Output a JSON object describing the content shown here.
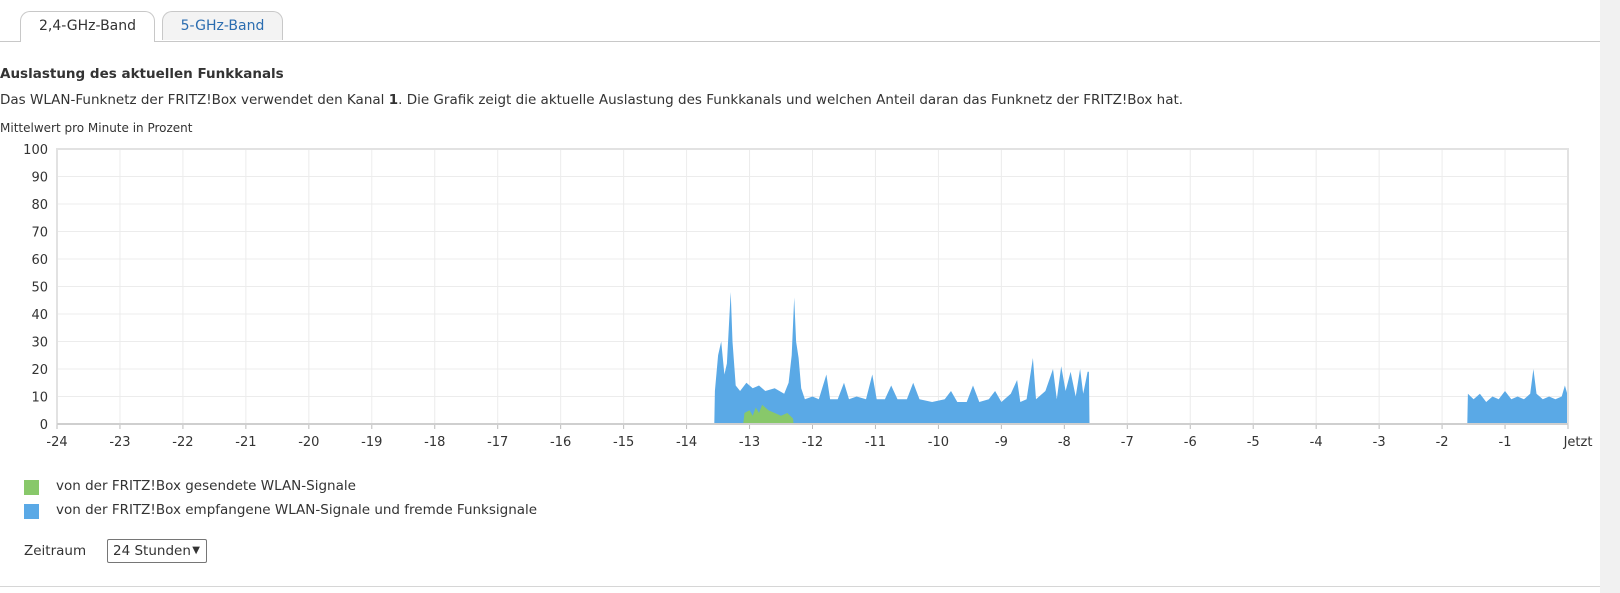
{
  "tabs": [
    {
      "label": "2,4-GHz-Band",
      "active": true
    },
    {
      "label": "5-GHz-Band",
      "active": false
    }
  ],
  "section_title": "Auslastung des aktuellen Funkkanals",
  "description": {
    "before": "Das WLAN-Funknetz der FRITZ!Box verwendet den Kanal ",
    "channel": "1",
    "after": ". Die Grafik zeigt die aktuelle Auslastung des Funkkanals und welchen Anteil daran das Funknetz der FRITZ!Box hat."
  },
  "unit_label": "Mittelwert pro Minute in Prozent",
  "chart_data": {
    "type": "area",
    "y_ticks": [
      "100",
      "90",
      "80",
      "70",
      "60",
      "50",
      "40",
      "30",
      "20",
      "10",
      "0"
    ],
    "x_ticks": [
      "-24",
      "-23",
      "-22",
      "-21",
      "-20",
      "-19",
      "-18",
      "-17",
      "-16",
      "-15",
      "-14",
      "-13",
      "-12",
      "-11",
      "-10",
      "-9",
      "-8",
      "-7",
      "-6",
      "-5",
      "-4",
      "-3",
      "-2",
      "-1",
      "Jetzt"
    ],
    "xlim": [
      -24,
      0
    ],
    "ylim": [
      0,
      100
    ],
    "grid": true,
    "series": [
      {
        "name": "von der FRITZ!Box empfangene WLAN-Signale und fremde Funksignale",
        "color": "#5aa9e6",
        "points": [
          [
            -13.56,
            0
          ],
          [
            -13.55,
            12
          ],
          [
            -13.5,
            25
          ],
          [
            -13.45,
            30
          ],
          [
            -13.4,
            18
          ],
          [
            -13.36,
            22
          ],
          [
            -13.33,
            35
          ],
          [
            -13.3,
            48
          ],
          [
            -13.27,
            30
          ],
          [
            -13.22,
            14
          ],
          [
            -13.15,
            12
          ],
          [
            -13.05,
            15
          ],
          [
            -12.95,
            13
          ],
          [
            -12.85,
            14
          ],
          [
            -12.75,
            12
          ],
          [
            -12.6,
            13
          ],
          [
            -12.45,
            11
          ],
          [
            -12.38,
            15
          ],
          [
            -12.33,
            25
          ],
          [
            -12.29,
            46
          ],
          [
            -12.26,
            30
          ],
          [
            -12.22,
            24
          ],
          [
            -12.18,
            13
          ],
          [
            -12.12,
            9
          ],
          [
            -12.0,
            10
          ],
          [
            -11.9,
            9
          ],
          [
            -11.78,
            18
          ],
          [
            -11.72,
            9
          ],
          [
            -11.6,
            9
          ],
          [
            -11.5,
            15
          ],
          [
            -11.42,
            9
          ],
          [
            -11.3,
            10
          ],
          [
            -11.15,
            9
          ],
          [
            -11.05,
            18
          ],
          [
            -10.98,
            9
          ],
          [
            -10.85,
            9
          ],
          [
            -10.75,
            14
          ],
          [
            -10.65,
            9
          ],
          [
            -10.5,
            9
          ],
          [
            -10.4,
            15
          ],
          [
            -10.3,
            9
          ],
          [
            -10.1,
            8
          ],
          [
            -9.9,
            9
          ],
          [
            -9.8,
            12
          ],
          [
            -9.7,
            8
          ],
          [
            -9.55,
            8
          ],
          [
            -9.45,
            14
          ],
          [
            -9.35,
            8
          ],
          [
            -9.2,
            9
          ],
          [
            -9.1,
            12
          ],
          [
            -9.0,
            8
          ],
          [
            -8.85,
            11
          ],
          [
            -8.75,
            16
          ],
          [
            -8.7,
            8
          ],
          [
            -8.6,
            9
          ],
          [
            -8.5,
            24
          ],
          [
            -8.45,
            9
          ],
          [
            -8.3,
            12
          ],
          [
            -8.18,
            20
          ],
          [
            -8.12,
            9
          ],
          [
            -8.05,
            21
          ],
          [
            -7.98,
            12
          ],
          [
            -7.9,
            19
          ],
          [
            -7.82,
            10
          ],
          [
            -7.75,
            20
          ],
          [
            -7.7,
            11
          ],
          [
            -7.63,
            19
          ],
          [
            -7.61,
            19
          ],
          [
            -7.6,
            0
          ],
          [
            -1.6,
            0
          ],
          [
            -1.59,
            11
          ],
          [
            -1.5,
            9
          ],
          [
            -1.4,
            11
          ],
          [
            -1.3,
            8
          ],
          [
            -1.2,
            10
          ],
          [
            -1.1,
            9
          ],
          [
            -1.0,
            12
          ],
          [
            -0.9,
            9
          ],
          [
            -0.8,
            10
          ],
          [
            -0.7,
            9
          ],
          [
            -0.6,
            11
          ],
          [
            -0.55,
            20
          ],
          [
            -0.5,
            11
          ],
          [
            -0.4,
            9
          ],
          [
            -0.3,
            10
          ],
          [
            -0.2,
            9
          ],
          [
            -0.1,
            10
          ],
          [
            -0.05,
            14
          ],
          [
            0.0,
            10
          ]
        ]
      },
      {
        "name": "von der FRITZ!Box gesendete WLAN-Signale",
        "color": "#88c86a",
        "points": [
          [
            -13.1,
            0
          ],
          [
            -13.08,
            4
          ],
          [
            -13.0,
            5
          ],
          [
            -12.95,
            3
          ],
          [
            -12.9,
            6
          ],
          [
            -12.85,
            4
          ],
          [
            -12.8,
            7
          ],
          [
            -12.7,
            5
          ],
          [
            -12.6,
            4
          ],
          [
            -12.5,
            3
          ],
          [
            -12.4,
            4
          ],
          [
            -12.31,
            2
          ],
          [
            -12.3,
            0
          ]
        ]
      }
    ],
    "legend": [
      {
        "label": "von der FRITZ!Box gesendete WLAN-Signale",
        "color": "#88c86a"
      },
      {
        "label": "von der FRITZ!Box empfangene WLAN-Signale und fremde Funksignale",
        "color": "#5aa9e6"
      }
    ]
  },
  "period": {
    "label": "Zeitraum",
    "selected": "24 Stunden",
    "arrow": "▼"
  }
}
